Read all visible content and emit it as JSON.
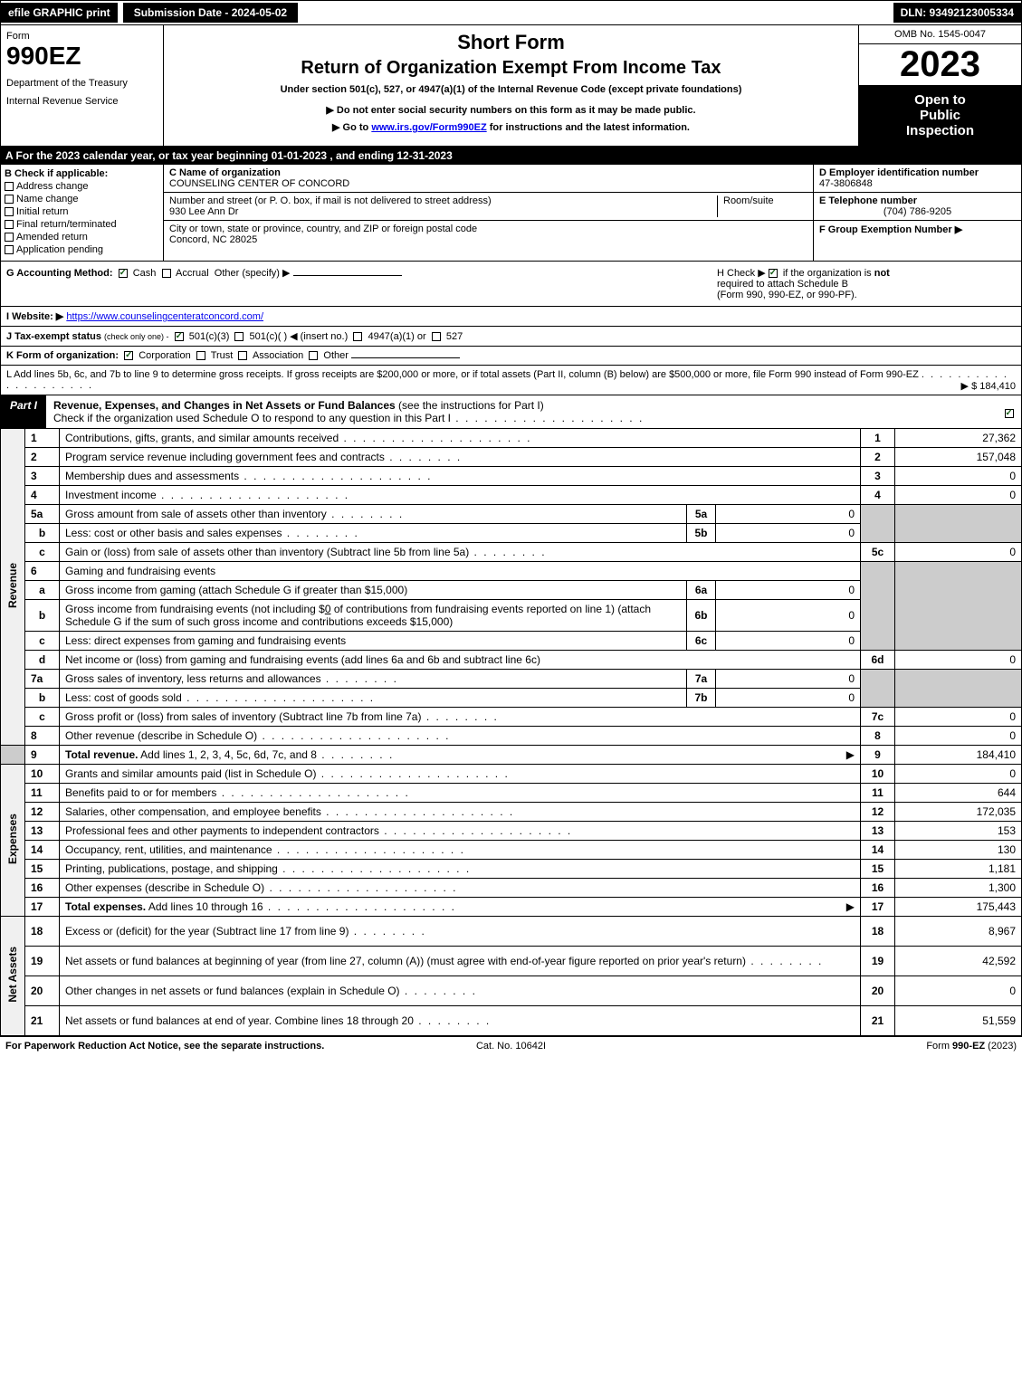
{
  "topbar": {
    "efile": "efile GRAPHIC print",
    "submission": "Submission Date - 2024-05-02",
    "dln": "DLN: 93492123005334"
  },
  "header": {
    "form_label": "Form",
    "form_number": "990EZ",
    "dept1": "Department of the Treasury",
    "dept2": "Internal Revenue Service",
    "short_form": "Short Form",
    "return_title": "Return of Organization Exempt From Income Tax",
    "under_section": "Under section 501(c), 527, or 4947(a)(1) of the Internal Revenue Code (except private foundations)",
    "do_not": "▶ Do not enter social security numbers on this form as it may be made public.",
    "goto_pre": "▶ Go to ",
    "goto_link": "www.irs.gov/Form990EZ",
    "goto_post": " for instructions and the latest information.",
    "omb": "OMB No. 1545-0047",
    "year": "2023",
    "open1": "Open to",
    "open2": "Public",
    "open3": "Inspection"
  },
  "sectionA": "A  For the 2023 calendar year, or tax year beginning 01-01-2023 , and ending 12-31-2023",
  "boxB": {
    "label": "B  Check if applicable:",
    "items": [
      "Address change",
      "Name change",
      "Initial return",
      "Final return/terminated",
      "Amended return",
      "Application pending"
    ]
  },
  "boxC": {
    "name_label": "C Name of organization",
    "name": "COUNSELING CENTER OF CONCORD",
    "addr_label": "Number and street (or P. O. box, if mail is not delivered to street address)",
    "addr": "930 Lee Ann Dr",
    "room_label": "Room/suite",
    "city_label": "City or town, state or province, country, and ZIP or foreign postal code",
    "city": "Concord, NC  28025"
  },
  "boxD": {
    "ein_label": "D Employer identification number",
    "ein": "47-3806848",
    "tel_label": "E Telephone number",
    "tel": "(704) 786-9205",
    "group_label": "F Group Exemption Number   ▶"
  },
  "rowG": {
    "label": "G Accounting Method:",
    "cash": "Cash",
    "accrual": "Accrual",
    "other": "Other (specify) ▶"
  },
  "rowH": {
    "text1": "H  Check ▶",
    "text2": "if the organization is ",
    "not": "not",
    "text3": "required to attach Schedule B",
    "text4": "(Form 990, 990-EZ, or 990-PF)."
  },
  "rowI": {
    "label": "I Website: ▶",
    "url": "https://www.counselingcenteratconcord.com/"
  },
  "rowJ": {
    "label": "J Tax-exempt status",
    "sub": "(check only one) -",
    "opt1": "501(c)(3)",
    "opt2": "501(c)( ) ◀ (insert no.)",
    "opt3": "4947(a)(1) or",
    "opt4": "527"
  },
  "rowK": {
    "label": "K Form of organization:",
    "opts": [
      "Corporation",
      "Trust",
      "Association",
      "Other"
    ]
  },
  "rowL": {
    "text": "L Add lines 5b, 6c, and 7b to line 9 to determine gross receipts. If gross receipts are $200,000 or more, or if total assets (Part II, column (B) below) are $500,000 or more, file Form 990 instead of Form 990-EZ",
    "amount": "▶ $ 184,410"
  },
  "part1": {
    "label": "Part I",
    "title_bold": "Revenue, Expenses, and Changes in Net Assets or Fund Balances",
    "title_rest": " (see the instructions for Part I)",
    "check_text": "Check if the organization used Schedule O to respond to any question in this Part I"
  },
  "revenue_label": "Revenue",
  "expenses_label": "Expenses",
  "netassets_label": "Net Assets",
  "lines": {
    "1": {
      "desc": "Contributions, gifts, grants, and similar amounts received",
      "val": "27,362"
    },
    "2": {
      "desc": "Program service revenue including government fees and contracts",
      "val": "157,048"
    },
    "3": {
      "desc": "Membership dues and assessments",
      "val": "0"
    },
    "4": {
      "desc": "Investment income",
      "val": "0"
    },
    "5a": {
      "desc": "Gross amount from sale of assets other than inventory",
      "mini": "0"
    },
    "5b": {
      "desc": "Less: cost or other basis and sales expenses",
      "mini": "0"
    },
    "5c": {
      "desc": "Gain or (loss) from sale of assets other than inventory (Subtract line 5b from line 5a)",
      "val": "0"
    },
    "6": {
      "desc": "Gaming and fundraising events"
    },
    "6a": {
      "desc": "Gross income from gaming (attach Schedule G if greater than $15,000)",
      "mini": "0"
    },
    "6b": {
      "desc_pre": "Gross income from fundraising events (not including $",
      "desc_amt": "0",
      "desc_mid": " of contributions from fundraising events reported on line 1) (attach Schedule G if the sum of such gross income and contributions exceeds $15,000)",
      "mini": "0"
    },
    "6c": {
      "desc": "Less: direct expenses from gaming and fundraising events",
      "mini": "0"
    },
    "6d": {
      "desc": "Net income or (loss) from gaming and fundraising events (add lines 6a and 6b and subtract line 6c)",
      "val": "0"
    },
    "7a": {
      "desc": "Gross sales of inventory, less returns and allowances",
      "mini": "0"
    },
    "7b": {
      "desc": "Less: cost of goods sold",
      "mini": "0"
    },
    "7c": {
      "desc": "Gross profit or (loss) from sales of inventory (Subtract line 7b from line 7a)",
      "val": "0"
    },
    "8": {
      "desc": "Other revenue (describe in Schedule O)",
      "val": "0"
    },
    "9": {
      "desc": "Total revenue. Add lines 1, 2, 3, 4, 5c, 6d, 7c, and 8",
      "val": "184,410"
    },
    "10": {
      "desc": "Grants and similar amounts paid (list in Schedule O)",
      "val": "0"
    },
    "11": {
      "desc": "Benefits paid to or for members",
      "val": "644"
    },
    "12": {
      "desc": "Salaries, other compensation, and employee benefits",
      "val": "172,035"
    },
    "13": {
      "desc": "Professional fees and other payments to independent contractors",
      "val": "153"
    },
    "14": {
      "desc": "Occupancy, rent, utilities, and maintenance",
      "val": "130"
    },
    "15": {
      "desc": "Printing, publications, postage, and shipping",
      "val": "1,181"
    },
    "16": {
      "desc": "Other expenses (describe in Schedule O)",
      "val": "1,300"
    },
    "17": {
      "desc": "Total expenses. Add lines 10 through 16",
      "val": "175,443"
    },
    "18": {
      "desc": "Excess or (deficit) for the year (Subtract line 17 from line 9)",
      "val": "8,967"
    },
    "19": {
      "desc": "Net assets or fund balances at beginning of year (from line 27, column (A)) (must agree with end-of-year figure reported on prior year's return)",
      "val": "42,592"
    },
    "20": {
      "desc": "Other changes in net assets or fund balances (explain in Schedule O)",
      "val": "0"
    },
    "21": {
      "desc": "Net assets or fund balances at end of year. Combine lines 18 through 20",
      "val": "51,559"
    }
  },
  "footer": {
    "left": "For Paperwork Reduction Act Notice, see the separate instructions.",
    "mid": "Cat. No. 10642I",
    "right_pre": "Form ",
    "right_bold": "990-EZ",
    "right_post": " (2023)"
  }
}
